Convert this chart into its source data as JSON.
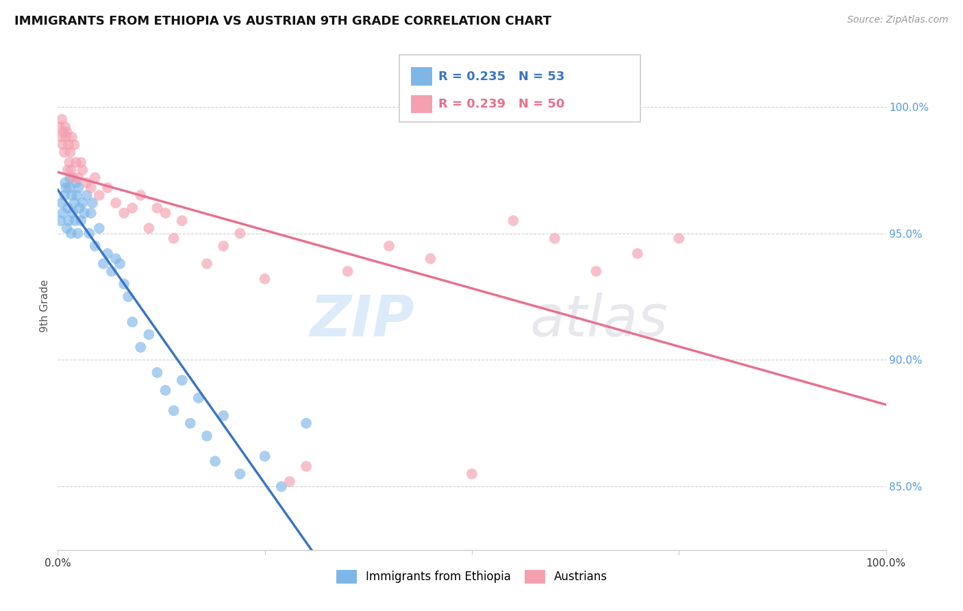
{
  "title": "IMMIGRANTS FROM ETHIOPIA VS AUSTRIAN 9TH GRADE CORRELATION CHART",
  "source_text": "Source: ZipAtlas.com",
  "ylabel": "9th Grade",
  "R_blue": 0.235,
  "N_blue": 53,
  "R_pink": 0.239,
  "N_pink": 50,
  "legend_label_blue": "Immigrants from Ethiopia",
  "legend_label_pink": "Austrians",
  "blue_color": "#7EB6E8",
  "pink_color": "#F4A0B0",
  "blue_line_color": "#3A75C4",
  "pink_line_color": "#E87090",
  "xlim": [
    0.0,
    100.0
  ],
  "ylim": [
    82.5,
    101.8
  ],
  "blue_points_x": [
    0.3,
    0.5,
    0.6,
    0.8,
    0.9,
    1.0,
    1.1,
    1.2,
    1.3,
    1.4,
    1.5,
    1.6,
    1.7,
    1.8,
    2.0,
    2.1,
    2.2,
    2.3,
    2.4,
    2.5,
    2.6,
    2.8,
    3.0,
    3.2,
    3.5,
    3.8,
    4.0,
    4.2,
    4.5,
    5.0,
    5.5,
    6.0,
    6.5,
    7.0,
    7.5,
    8.0,
    8.5,
    9.0,
    10.0,
    11.0,
    12.0,
    13.0,
    14.0,
    15.0,
    16.0,
    17.0,
    18.0,
    19.0,
    20.0,
    22.0,
    25.0,
    27.0,
    30.0
  ],
  "blue_points_y": [
    95.5,
    96.2,
    95.8,
    96.5,
    97.0,
    96.8,
    95.2,
    96.0,
    95.5,
    96.8,
    97.2,
    95.0,
    96.5,
    95.8,
    96.2,
    95.5,
    97.0,
    96.5,
    95.0,
    96.8,
    96.0,
    95.5,
    96.2,
    95.8,
    96.5,
    95.0,
    95.8,
    96.2,
    94.5,
    95.2,
    93.8,
    94.2,
    93.5,
    94.0,
    93.8,
    93.0,
    92.5,
    91.5,
    90.5,
    91.0,
    89.5,
    88.8,
    88.0,
    89.2,
    87.5,
    88.5,
    87.0,
    86.0,
    87.8,
    85.5,
    86.2,
    85.0,
    87.5
  ],
  "pink_points_x": [
    0.2,
    0.4,
    0.5,
    0.6,
    0.7,
    0.8,
    0.9,
    1.0,
    1.1,
    1.2,
    1.3,
    1.4,
    1.5,
    1.6,
    1.7,
    1.8,
    2.0,
    2.2,
    2.5,
    2.8,
    3.0,
    3.5,
    4.0,
    4.5,
    5.0,
    6.0,
    7.0,
    8.0,
    9.0,
    10.0,
    11.0,
    12.0,
    13.0,
    14.0,
    15.0,
    18.0,
    20.0,
    22.0,
    25.0,
    28.0,
    30.0,
    35.0,
    40.0,
    45.0,
    50.0,
    55.0,
    60.0,
    65.0,
    70.0,
    75.0
  ],
  "pink_points_y": [
    99.2,
    98.8,
    99.5,
    98.5,
    99.0,
    98.2,
    99.2,
    98.8,
    99.0,
    97.5,
    98.5,
    97.8,
    98.2,
    97.5,
    98.8,
    97.2,
    98.5,
    97.8,
    97.2,
    97.8,
    97.5,
    97.0,
    96.8,
    97.2,
    96.5,
    96.8,
    96.2,
    95.8,
    96.0,
    96.5,
    95.2,
    96.0,
    95.8,
    94.8,
    95.5,
    93.8,
    94.5,
    95.0,
    93.2,
    85.2,
    85.8,
    93.5,
    94.5,
    94.0,
    85.5,
    95.5,
    94.8,
    93.5,
    94.2,
    94.8
  ]
}
